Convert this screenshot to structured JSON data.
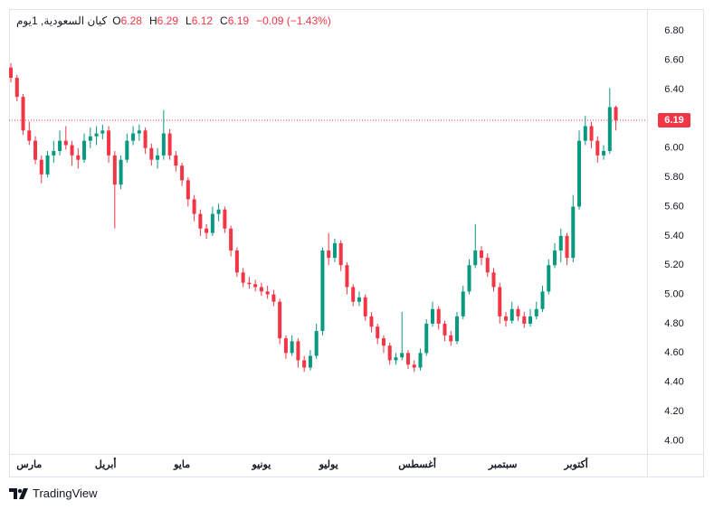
{
  "header": {
    "symbol": "كيان السعودية, 1يوم",
    "labels": [
      "O",
      "H",
      "L",
      "C"
    ],
    "change": "−0.09 (−1.43%)"
  },
  "footer": {
    "brand": "TradingView"
  },
  "chart_data": {
    "type": "candlestick",
    "up_color": "#089981",
    "down_color": "#f23645",
    "grid": false,
    "ylim": [
      3.91,
      6.95
    ],
    "yticks": [
      {
        "value": 4.0,
        "label": "4.00"
      },
      {
        "value": 4.2,
        "label": "4.20"
      },
      {
        "value": 4.4,
        "label": "4.40"
      },
      {
        "value": 4.6,
        "label": "4.60"
      },
      {
        "value": 4.8,
        "label": "4.80"
      },
      {
        "value": 5.0,
        "label": "5.00"
      },
      {
        "value": 5.2,
        "label": "5.20"
      },
      {
        "value": 5.4,
        "label": "5.40"
      },
      {
        "value": 5.6,
        "label": "5.60"
      },
      {
        "value": 5.8,
        "label": "5.80"
      },
      {
        "value": 6.0,
        "label": "6.00"
      },
      {
        "value": 6.2,
        "label": "6.20"
      },
      {
        "value": 6.4,
        "label": "6.40"
      },
      {
        "value": 6.6,
        "label": "6.60"
      },
      {
        "value": 6.8,
        "label": "6.80"
      }
    ],
    "xlim": [
      -0.3,
      104.1
    ],
    "xticks": [
      {
        "value": 3,
        "label": "مارس"
      },
      {
        "value": 15.5,
        "label": "أبريل"
      },
      {
        "value": 28,
        "label": "مايو"
      },
      {
        "value": 41,
        "label": "يونيو"
      },
      {
        "value": 52,
        "label": "يوليو"
      },
      {
        "value": 66.5,
        "label": "أغسطس"
      },
      {
        "value": 80.5,
        "label": "سبتمبر"
      },
      {
        "value": 92.5,
        "label": "أكتوبر"
      }
    ],
    "ohlc": [
      [
        6.55,
        6.58,
        6.45,
        6.48
      ],
      [
        6.48,
        6.5,
        6.32,
        6.35
      ],
      [
        6.35,
        6.37,
        6.09,
        6.12
      ],
      [
        6.12,
        6.18,
        6.02,
        6.05
      ],
      [
        6.05,
        6.08,
        5.89,
        5.92
      ],
      [
        5.92,
        5.95,
        5.76,
        5.82
      ],
      [
        5.82,
        5.98,
        5.8,
        5.95
      ],
      [
        5.95,
        6.05,
        5.9,
        5.98
      ],
      [
        5.98,
        6.12,
        5.95,
        6.05
      ],
      [
        6.05,
        6.15,
        5.99,
        6.02
      ],
      [
        6.02,
        6.05,
        5.88,
        5.95
      ],
      [
        5.95,
        6.0,
        5.86,
        5.92
      ],
      [
        5.92,
        6.1,
        5.9,
        6.05
      ],
      [
        6.05,
        6.14,
        6.0,
        6.08
      ],
      [
        6.08,
        6.15,
        6.02,
        6.1
      ],
      [
        6.1,
        6.16,
        6.06,
        6.12
      ],
      [
        6.12,
        6.15,
        5.9,
        5.95
      ],
      [
        5.95,
        5.98,
        5.45,
        5.75
      ],
      [
        5.75,
        5.95,
        5.72,
        5.92
      ],
      [
        5.92,
        6.1,
        5.9,
        6.05
      ],
      [
        6.05,
        6.15,
        6.02,
        6.1
      ],
      [
        6.1,
        6.16,
        6.05,
        6.12
      ],
      [
        6.12,
        6.14,
        5.96,
        6.0
      ],
      [
        6.0,
        6.03,
        5.88,
        5.92
      ],
      [
        5.92,
        6.0,
        5.86,
        5.95
      ],
      [
        5.95,
        6.26,
        5.92,
        6.1
      ],
      [
        6.1,
        6.13,
        5.92,
        5.95
      ],
      [
        5.95,
        5.98,
        5.84,
        5.88
      ],
      [
        5.88,
        5.9,
        5.74,
        5.78
      ],
      [
        5.78,
        5.8,
        5.6,
        5.65
      ],
      [
        5.65,
        5.68,
        5.5,
        5.55
      ],
      [
        5.55,
        5.58,
        5.4,
        5.45
      ],
      [
        5.45,
        5.48,
        5.38,
        5.42
      ],
      [
        5.42,
        5.6,
        5.4,
        5.55
      ],
      [
        5.55,
        5.62,
        5.5,
        5.58
      ],
      [
        5.58,
        5.6,
        5.42,
        5.45
      ],
      [
        5.45,
        5.47,
        5.26,
        5.3
      ],
      [
        5.3,
        5.32,
        5.12,
        5.15
      ],
      [
        5.15,
        5.18,
        5.05,
        5.08
      ],
      [
        5.08,
        5.12,
        5.04,
        5.07
      ],
      [
        5.07,
        5.1,
        5.02,
        5.05
      ],
      [
        5.05,
        5.08,
        4.99,
        5.02
      ],
      [
        5.02,
        5.06,
        4.97,
        5.0
      ],
      [
        5.0,
        5.03,
        4.92,
        4.95
      ],
      [
        4.95,
        4.97,
        4.66,
        4.7
      ],
      [
        4.7,
        4.72,
        4.56,
        4.6
      ],
      [
        4.6,
        4.72,
        4.58,
        4.68
      ],
      [
        4.68,
        4.7,
        4.5,
        4.55
      ],
      [
        4.55,
        4.58,
        4.47,
        4.5
      ],
      [
        4.5,
        4.62,
        4.48,
        4.58
      ],
      [
        4.58,
        4.8,
        4.56,
        4.75
      ],
      [
        4.75,
        5.32,
        4.72,
        5.3
      ],
      [
        5.3,
        5.42,
        5.2,
        5.25
      ],
      [
        5.25,
        5.38,
        5.22,
        5.35
      ],
      [
        5.35,
        5.37,
        5.16,
        5.2
      ],
      [
        5.2,
        5.22,
        5.0,
        5.05
      ],
      [
        5.05,
        5.07,
        4.92,
        4.95
      ],
      [
        4.95,
        5.02,
        4.92,
        4.98
      ],
      [
        4.98,
        5.0,
        4.82,
        4.85
      ],
      [
        4.85,
        4.88,
        4.74,
        4.78
      ],
      [
        4.78,
        4.8,
        4.66,
        4.7
      ],
      [
        4.7,
        4.72,
        4.6,
        4.65
      ],
      [
        4.65,
        4.67,
        4.52,
        4.55
      ],
      [
        4.55,
        4.6,
        4.52,
        4.57
      ],
      [
        4.57,
        4.88,
        4.55,
        4.6
      ],
      [
        4.6,
        4.62,
        4.49,
        4.52
      ],
      [
        4.52,
        4.55,
        4.47,
        4.5
      ],
      [
        4.5,
        4.63,
        4.48,
        4.6
      ],
      [
        4.6,
        4.83,
        4.58,
        4.8
      ],
      [
        4.8,
        4.95,
        4.78,
        4.9
      ],
      [
        4.9,
        4.92,
        4.76,
        4.8
      ],
      [
        4.8,
        4.82,
        4.68,
        4.72
      ],
      [
        4.72,
        4.75,
        4.65,
        4.68
      ],
      [
        4.68,
        4.88,
        4.66,
        4.85
      ],
      [
        4.85,
        5.06,
        4.83,
        5.02
      ],
      [
        5.02,
        5.24,
        5.0,
        5.2
      ],
      [
        5.2,
        5.48,
        5.18,
        5.3
      ],
      [
        5.3,
        5.33,
        5.2,
        5.25
      ],
      [
        5.25,
        5.28,
        5.12,
        5.15
      ],
      [
        5.15,
        5.18,
        5.02,
        5.05
      ],
      [
        5.05,
        5.08,
        4.8,
        4.85
      ],
      [
        4.85,
        4.88,
        4.78,
        4.82
      ],
      [
        4.82,
        4.95,
        4.8,
        4.9
      ],
      [
        4.9,
        4.92,
        4.82,
        4.85
      ],
      [
        4.85,
        4.88,
        4.77,
        4.8
      ],
      [
        4.8,
        4.9,
        4.78,
        4.85
      ],
      [
        4.85,
        4.95,
        4.83,
        4.9
      ],
      [
        4.9,
        5.06,
        4.88,
        5.02
      ],
      [
        5.02,
        5.24,
        5.0,
        5.2
      ],
      [
        5.2,
        5.35,
        5.18,
        5.3
      ],
      [
        5.3,
        5.45,
        5.22,
        5.4
      ],
      [
        5.4,
        5.42,
        5.2,
        5.25
      ],
      [
        5.25,
        5.68,
        5.22,
        5.6
      ],
      [
        5.6,
        6.12,
        5.58,
        6.05
      ],
      [
        6.05,
        6.22,
        6.02,
        6.15
      ],
      [
        6.15,
        6.18,
        6.0,
        6.05
      ],
      [
        6.05,
        6.08,
        5.9,
        5.95
      ],
      [
        5.95,
        6.02,
        5.92,
        5.98
      ],
      [
        5.98,
        6.41,
        5.96,
        6.28
      ],
      [
        6.28,
        6.29,
        6.12,
        6.19
      ]
    ]
  }
}
